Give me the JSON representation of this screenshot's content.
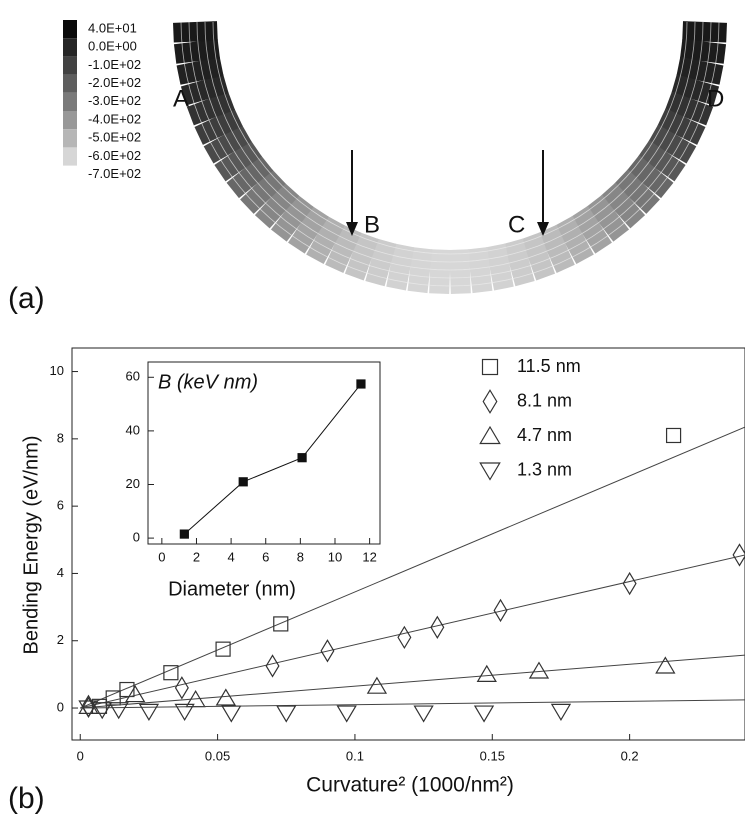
{
  "panel_a": {
    "label": "(a)",
    "colorbar": {
      "labels": [
        "4.0E+01",
        "0.0E+00",
        "-1.0E+02",
        "-2.0E+02",
        "-3.0E+02",
        "-4.0E+02",
        "-5.0E+02",
        "-6.0E+02",
        "-7.0E+02"
      ],
      "colors": [
        "#0a0a0a",
        "#262626",
        "#424242",
        "#5e5e5e",
        "#7a7a7a",
        "#989898",
        "#b6b6b6",
        "#d6d6d6"
      ]
    },
    "points": [
      "A",
      "B",
      "C",
      "D"
    ]
  },
  "chart_data": [
    {
      "type": "scatter",
      "label": "(b)",
      "x_label": "Curvature² (1000/nm²)",
      "y_label": "Bending Energy (eV/nm)",
      "xlim": [
        -0.003,
        0.242
      ],
      "ylim": [
        -0.95,
        10.7
      ],
      "xticks": [
        0,
        0.05,
        0.1,
        0.15,
        0.2
      ],
      "yticks": [
        0,
        2,
        4,
        6,
        8,
        10
      ],
      "series": [
        {
          "name": "11.5 nm",
          "marker": "square",
          "color": "#333333",
          "fit_slope": 34.5,
          "x": [
            0.007,
            0.012,
            0.017,
            0.033,
            0.052,
            0.073,
            0.216
          ],
          "values": [
            0.05,
            0.3,
            0.55,
            1.05,
            1.75,
            2.5,
            8.1
          ]
        },
        {
          "name": "8.1 nm",
          "marker": "diamond",
          "color": "#333333",
          "fit_slope": 18.8,
          "x": [
            0.003,
            0.037,
            0.07,
            0.09,
            0.118,
            0.13,
            0.153,
            0.2,
            0.24
          ],
          "values": [
            0.05,
            0.6,
            1.25,
            1.7,
            2.1,
            2.4,
            2.9,
            3.7,
            4.55
          ]
        },
        {
          "name": "4.7 nm",
          "marker": "triangle-up",
          "color": "#333333",
          "fit_slope": 6.5,
          "x": [
            0.003,
            0.02,
            0.042,
            0.053,
            0.108,
            0.148,
            0.167,
            0.213
          ],
          "values": [
            0.05,
            0.4,
            0.25,
            0.3,
            0.65,
            1.0,
            1.1,
            1.25
          ]
        },
        {
          "name": "1.3 nm",
          "marker": "triangle-down",
          "color": "#333333",
          "fit_slope": 1.0,
          "x": [
            0.003,
            0.008,
            0.014,
            0.025,
            0.038,
            0.055,
            0.075,
            0.097,
            0.125,
            0.147,
            0.175
          ],
          "values": [
            0.0,
            -0.05,
            -0.05,
            -0.1,
            -0.1,
            -0.15,
            -0.15,
            -0.15,
            -0.15,
            -0.15,
            -0.1
          ]
        }
      ]
    },
    {
      "type": "line",
      "title": "B (keV nm)",
      "x_label": "Diameter (nm)",
      "xlim": [
        -0.8,
        12.6
      ],
      "ylim": [
        -2.2,
        65.7
      ],
      "xticks": [
        0,
        2,
        4,
        6,
        8,
        10,
        12
      ],
      "yticks": [
        0,
        20,
        40,
        60
      ],
      "series": [
        {
          "marker": "filled-square",
          "color": "#111111",
          "x": [
            1.3,
            4.7,
            8.1,
            11.5
          ],
          "values": [
            1.5,
            21,
            30,
            57.5
          ]
        }
      ]
    }
  ]
}
